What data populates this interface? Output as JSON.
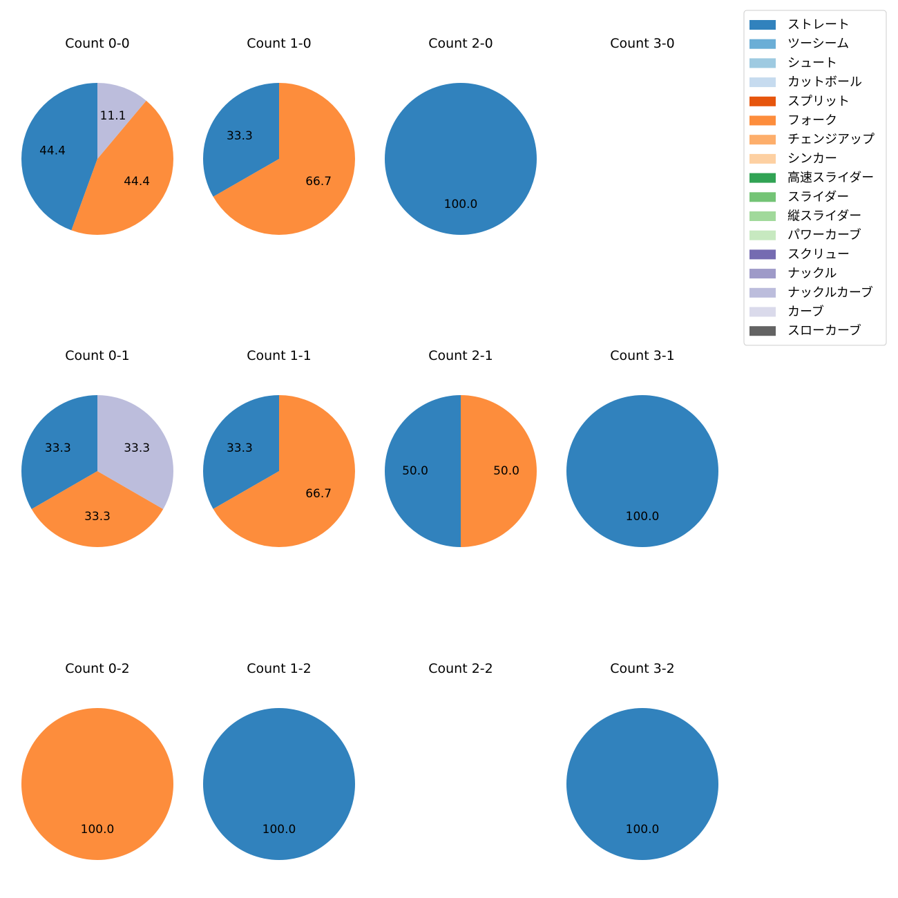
{
  "chart_data": {
    "type": "pie",
    "legend": {
      "placement": "top-right",
      "entries": [
        {
          "name": "ストレート",
          "color": "#3182bd"
        },
        {
          "name": "ツーシーム",
          "color": "#6baed6"
        },
        {
          "name": "シュート",
          "color": "#9ecae1"
        },
        {
          "name": "カットボール",
          "color": "#c6dbef"
        },
        {
          "name": "スプリット",
          "color": "#e6550d"
        },
        {
          "name": "フォーク",
          "color": "#fd8d3c"
        },
        {
          "name": "チェンジアップ",
          "color": "#fdae6b"
        },
        {
          "name": "シンカー",
          "color": "#fdd0a2"
        },
        {
          "name": "高速スライダー",
          "color": "#31a354"
        },
        {
          "name": "スライダー",
          "color": "#74c476"
        },
        {
          "name": "縦スライダー",
          "color": "#a1d99b"
        },
        {
          "name": "パワーカーブ",
          "color": "#c7e9c0"
        },
        {
          "name": "スクリュー",
          "color": "#756bb1"
        },
        {
          "name": "ナックル",
          "color": "#9e9ac8"
        },
        {
          "name": "ナックルカーブ",
          "color": "#bcbddc"
        },
        {
          "name": "カーブ",
          "color": "#dadaeb"
        },
        {
          "name": "スローカーブ",
          "color": "#636363"
        }
      ]
    },
    "panels": [
      {
        "title": "Count 0-0",
        "slices": [
          {
            "pitch": "ストレート",
            "value": 44.4,
            "label": "44.4"
          },
          {
            "pitch": "フォーク",
            "value": 44.4,
            "label": "44.4"
          },
          {
            "pitch": "ナックルカーブ",
            "value": 11.1,
            "label": "11.1"
          }
        ]
      },
      {
        "title": "Count 1-0",
        "slices": [
          {
            "pitch": "ストレート",
            "value": 33.3,
            "label": "33.3"
          },
          {
            "pitch": "フォーク",
            "value": 66.7,
            "label": "66.7"
          }
        ]
      },
      {
        "title": "Count 2-0",
        "slices": [
          {
            "pitch": "ストレート",
            "value": 100.0,
            "label": "100.0"
          }
        ]
      },
      {
        "title": "Count 3-0",
        "slices": []
      },
      {
        "title": "Count 0-1",
        "slices": [
          {
            "pitch": "ストレート",
            "value": 33.3,
            "label": "33.3"
          },
          {
            "pitch": "フォーク",
            "value": 33.3,
            "label": "33.3"
          },
          {
            "pitch": "ナックルカーブ",
            "value": 33.3,
            "label": "33.3"
          }
        ]
      },
      {
        "title": "Count 1-1",
        "slices": [
          {
            "pitch": "ストレート",
            "value": 33.3,
            "label": "33.3"
          },
          {
            "pitch": "フォーク",
            "value": 66.7,
            "label": "66.7"
          }
        ]
      },
      {
        "title": "Count 2-1",
        "slices": [
          {
            "pitch": "ストレート",
            "value": 50.0,
            "label": "50.0"
          },
          {
            "pitch": "フォーク",
            "value": 50.0,
            "label": "50.0"
          }
        ]
      },
      {
        "title": "Count 3-1",
        "slices": [
          {
            "pitch": "ストレート",
            "value": 100.0,
            "label": "100.0"
          }
        ]
      },
      {
        "title": "Count 0-2",
        "slices": [
          {
            "pitch": "フォーク",
            "value": 100.0,
            "label": "100.0"
          }
        ]
      },
      {
        "title": "Count 1-2",
        "slices": [
          {
            "pitch": "ストレート",
            "value": 100.0,
            "label": "100.0"
          }
        ]
      },
      {
        "title": "Count 2-2",
        "slices": []
      },
      {
        "title": "Count 3-2",
        "slices": [
          {
            "pitch": "ストレート",
            "value": 100.0,
            "label": "100.0"
          }
        ]
      }
    ]
  }
}
